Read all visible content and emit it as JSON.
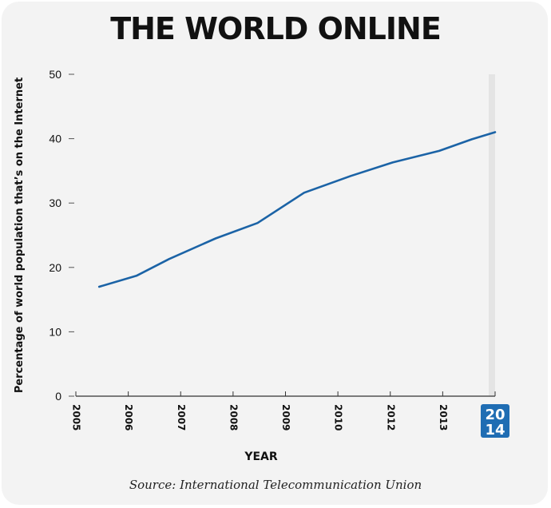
{
  "page": {
    "title": "THE WORLD ONLINE",
    "source": "Source: International Telecommunication Union"
  },
  "chart_data": {
    "type": "line",
    "title": "THE WORLD ONLINE",
    "xlabel": "YEAR",
    "ylabel": "Percentage of world population that’s on the Internet",
    "ylim": [
      0,
      50
    ],
    "yticks": [
      0,
      10,
      20,
      30,
      40,
      50
    ],
    "xlim": [
      2005,
      2014
    ],
    "xticks": [
      "2005",
      "2006",
      "2007",
      "2008",
      "2009",
      "2010",
      "2012",
      "2013"
    ],
    "highlight_label": {
      "top": "20",
      "bottom": "14",
      "color": "#1f6db3"
    },
    "grid": false,
    "line_color": "#1b63a6",
    "series": [
      {
        "x": [
          2005.5,
          2006.3,
          2007,
          2008,
          2008.9,
          2009.9,
          2010.9,
          2011.8,
          2012.8,
          2013.5,
          2014
        ],
        "values": [
          17.0,
          18.7,
          21.3,
          24.5,
          26.9,
          31.6,
          34.2,
          36.3,
          38.1,
          39.9,
          41.0
        ]
      }
    ]
  }
}
